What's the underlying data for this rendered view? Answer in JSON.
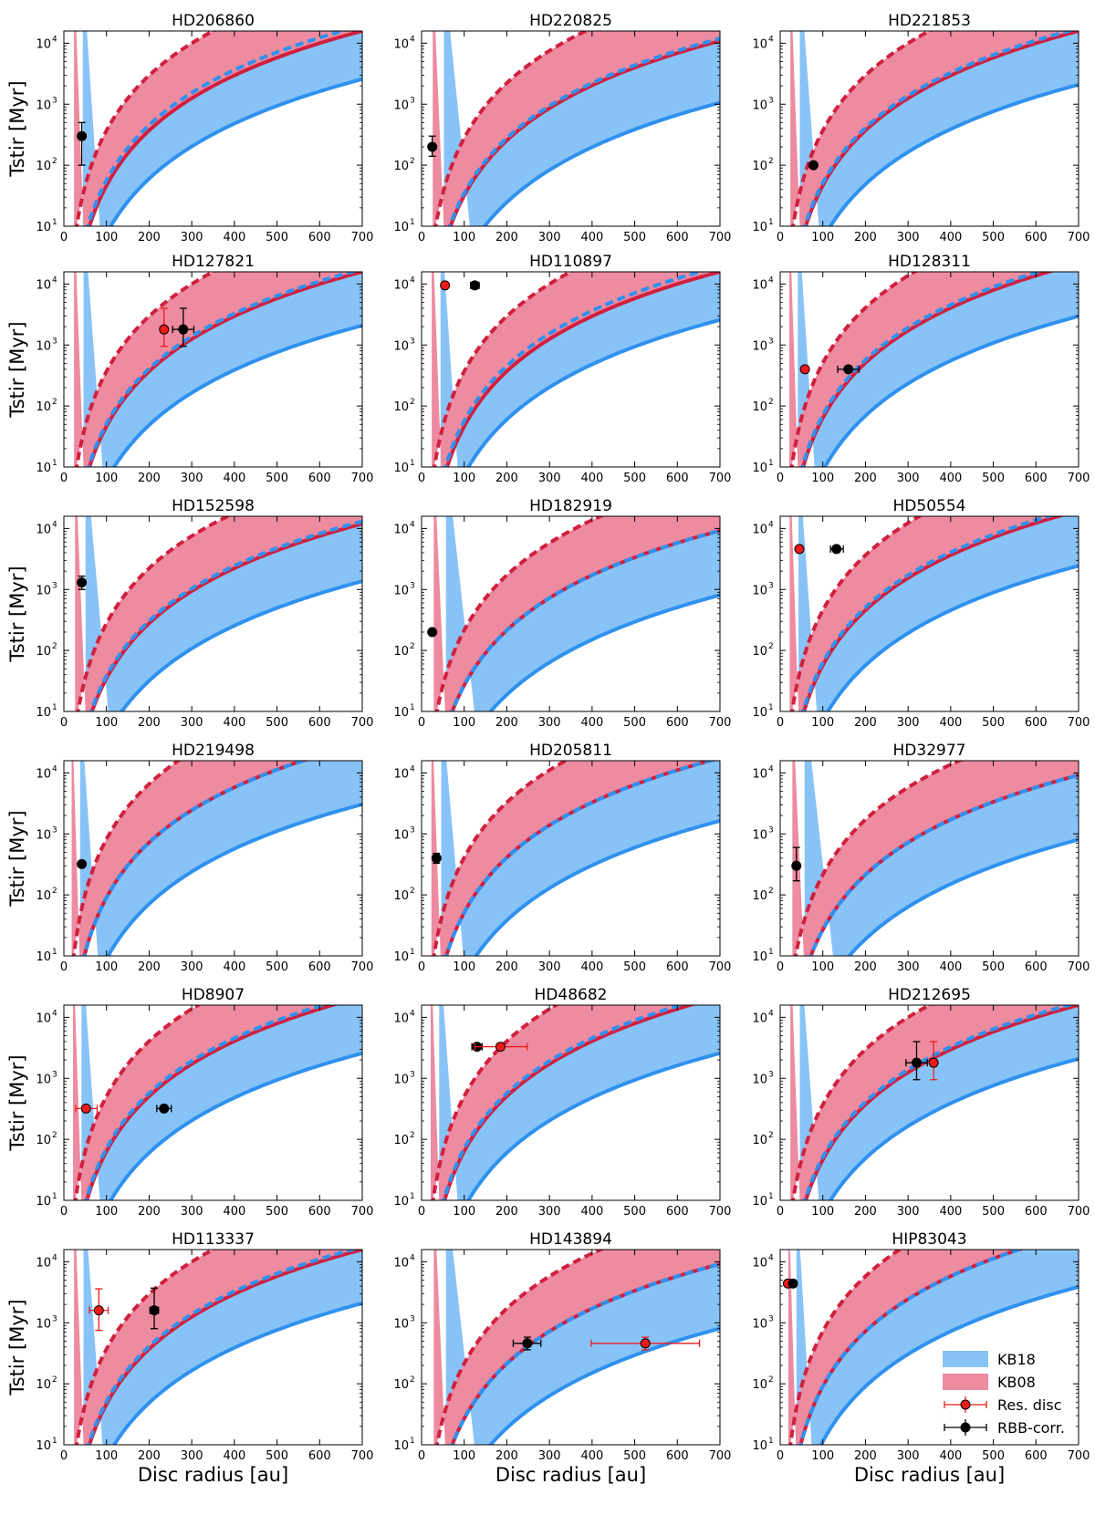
{
  "figure": {
    "xlabel": "Disc radius [au]",
    "ylabel": "Tstir [Myr]",
    "xlim": [
      0,
      700
    ],
    "ylim_log10": [
      1,
      4.2
    ],
    "x_ticks": [
      "0",
      "100",
      "200",
      "300",
      "400",
      "500",
      "600",
      "700"
    ],
    "y_ticks": [
      {
        "base": "10",
        "exp": "1",
        "value": 10
      },
      {
        "base": "10",
        "exp": "2",
        "value": 100
      },
      {
        "base": "10",
        "exp": "3",
        "value": 1000
      },
      {
        "base": "10",
        "exp": "4",
        "value": 10000
      }
    ],
    "colors": {
      "kb18_fill": "#88c3f7",
      "kb18_line": "#2f91ef",
      "kb08_fill": "#ed8ba0",
      "kb08_line": "#d0203f",
      "res_disc": "#ee1a1a",
      "rbb_corr": "#000000"
    },
    "legend": {
      "location": "lower-right of last panel",
      "entries": [
        "KB18",
        "KB08",
        "Res. disc",
        "RBB-corr."
      ]
    }
  },
  "chart_data": [
    {
      "type": "area",
      "title": "HD206860",
      "kb08_r10": [
        30,
        60
      ],
      "kb18_r10": [
        56,
        110
      ],
      "points": [
        {
          "series": "RBB-corr.",
          "x": 42,
          "y": 300,
          "y_err": [
            100,
            500
          ]
        }
      ]
    },
    {
      "type": "area",
      "title": "HD220825",
      "kb08_r10": [
        33,
        68
      ],
      "kb18_r10": [
        66,
        148
      ],
      "points": [
        {
          "series": "RBB-corr.",
          "x": 25,
          "y": 200,
          "y_err": [
            140,
            300
          ]
        }
      ]
    },
    {
      "type": "area",
      "title": "HD221853",
      "kb08_r10": [
        30,
        60
      ],
      "kb18_r10": [
        58,
        118
      ],
      "points": [
        {
          "series": "RBB-corr.",
          "x": 78,
          "y": 100
        }
      ]
    },
    {
      "type": "area",
      "title": "HD127821",
      "kb08_r10": [
        30,
        60
      ],
      "kb18_r10": [
        58,
        118
      ],
      "points": [
        {
          "series": "Res. disc",
          "x": 235,
          "y": 1800,
          "y_err": [
            950,
            4000
          ]
        },
        {
          "series": "RBB-corr.",
          "x": 280,
          "y": 1800,
          "x_err": [
            255,
            305
          ],
          "y_err": [
            950,
            4000
          ]
        }
      ]
    },
    {
      "type": "area",
      "title": "HD110897",
      "kb08_r10": [
        30,
        60
      ],
      "kb18_r10": [
        56,
        110
      ],
      "points": [
        {
          "series": "Res. disc",
          "x": 55,
          "y": 9500
        },
        {
          "series": "RBB-corr.",
          "x": 125,
          "y": 9500,
          "x_err": [
            115,
            135
          ]
        }
      ]
    },
    {
      "type": "area",
      "title": "HD128311",
      "kb08_r10": [
        27,
        54
      ],
      "kb18_r10": [
        52,
        105
      ],
      "points": [
        {
          "series": "Res. disc",
          "x": 58,
          "y": 400
        },
        {
          "series": "RBB-corr.",
          "x": 160,
          "y": 400,
          "x_err": [
            135,
            185
          ]
        }
      ]
    },
    {
      "type": "area",
      "title": "HD152598",
      "kb08_r10": [
        33,
        66
      ],
      "kb18_r10": [
        64,
        136
      ],
      "points": [
        {
          "series": "RBB-corr.",
          "x": 42,
          "y": 1300,
          "y_err": [
            1000,
            1650
          ]
        }
      ]
    },
    {
      "type": "area",
      "title": "HD182919",
      "kb08_r10": [
        36,
        72
      ],
      "kb18_r10": [
        72,
        162
      ],
      "points": [
        {
          "series": "RBB-corr.",
          "x": 25,
          "y": 200
        }
      ]
    },
    {
      "type": "area",
      "title": "HD50554",
      "kb08_r10": [
        28,
        56
      ],
      "kb18_r10": [
        54,
        112
      ],
      "points": [
        {
          "series": "Res. disc",
          "x": 45,
          "y": 4600
        },
        {
          "series": "RBB-corr.",
          "x": 132,
          "y": 4600,
          "x_err": [
            118,
            148
          ]
        }
      ]
    },
    {
      "type": "area",
      "title": "HD219498",
      "kb08_r10": [
        23,
        48
      ],
      "kb18_r10": [
        48,
        104
      ],
      "points": [
        {
          "series": "RBB-corr.",
          "x": 42,
          "y": 320
        }
      ]
    },
    {
      "type": "area",
      "title": "HD205811",
      "kb08_r10": [
        29,
        58
      ],
      "kb18_r10": [
        58,
        128
      ],
      "points": [
        {
          "series": "RBB-corr.",
          "x": 35,
          "y": 400,
          "y_err": [
            330,
            480
          ]
        }
      ]
    },
    {
      "type": "area",
      "title": "HD32977",
      "kb08_r10": [
        36,
        72
      ],
      "kb18_r10": [
        72,
        162
      ],
      "points": [
        {
          "series": "RBB-corr.",
          "x": 38,
          "y": 300,
          "y_err": [
            170,
            600
          ]
        }
      ]
    },
    {
      "type": "area",
      "title": "HD8907",
      "kb08_r10": [
        27,
        54
      ],
      "kb18_r10": [
        52,
        110
      ],
      "points": [
        {
          "series": "Res. disc",
          "x": 52,
          "y": 320,
          "x_err": [
            28,
            78
          ]
        },
        {
          "series": "RBB-corr.",
          "x": 235,
          "y": 320,
          "x_err": [
            218,
            252
          ]
        }
      ]
    },
    {
      "type": "area",
      "title": "HD48682",
      "kb08_r10": [
        27,
        54
      ],
      "kb18_r10": [
        52,
        110
      ],
      "points": [
        {
          "series": "RBB-corr.",
          "x": 130,
          "y": 3300,
          "x_err": [
            118,
            142
          ]
        },
        {
          "series": "Res. disc",
          "x": 185,
          "y": 3300,
          "x_err": [
            125,
            248
          ]
        }
      ]
    },
    {
      "type": "area",
      "title": "HD212695",
      "kb08_r10": [
        30,
        60
      ],
      "kb18_r10": [
        58,
        118
      ],
      "points": [
        {
          "series": "RBB-corr.",
          "x": 320,
          "y": 1800,
          "x_err": [
            295,
            345
          ],
          "y_err": [
            950,
            4000
          ]
        },
        {
          "series": "Res. disc",
          "x": 360,
          "y": 1800,
          "y_err": [
            950,
            4000
          ]
        }
      ]
    },
    {
      "type": "area",
      "title": "HD113337",
      "kb08_r10": [
        30,
        60
      ],
      "kb18_r10": [
        58,
        118
      ],
      "points": [
        {
          "series": "Res. disc",
          "x": 82,
          "y": 1600,
          "x_err": [
            60,
            104
          ],
          "y_err": [
            750,
            3600
          ]
        },
        {
          "series": "RBB-corr.",
          "x": 212,
          "y": 1600,
          "x_err": [
            202,
            222
          ],
          "y_err": [
            800,
            3700
          ]
        }
      ]
    },
    {
      "type": "area",
      "title": "HD143894",
      "kb08_r10": [
        36,
        72
      ],
      "kb18_r10": [
        72,
        162
      ],
      "points": [
        {
          "series": "RBB-corr.",
          "x": 248,
          "y": 460,
          "x_err": [
            215,
            280
          ],
          "y_err": [
            360,
            580
          ]
        },
        {
          "series": "Res. disc",
          "x": 525,
          "y": 460,
          "x_err": [
            398,
            652
          ],
          "y_err": [
            360,
            580
          ]
        }
      ]
    },
    {
      "type": "area",
      "title": "HIP83043",
      "kb08_r10": [
        24,
        48
      ],
      "kb18_r10": [
        48,
        96
      ],
      "points": [
        {
          "series": "Res. disc",
          "x": 18,
          "y": 4400
        },
        {
          "series": "RBB-corr.",
          "x": 30,
          "y": 4400
        }
      ]
    }
  ]
}
